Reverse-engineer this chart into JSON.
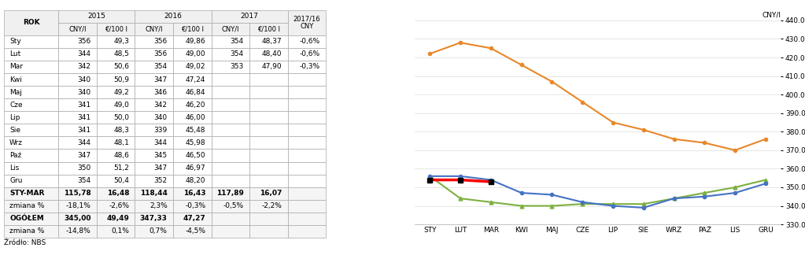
{
  "months": [
    "Sty",
    "Lut",
    "Mar",
    "Kwi",
    "Maj",
    "Cze",
    "Lip",
    "Sie",
    "Wrz",
    "Paź",
    "Lis",
    "Gru"
  ],
  "months_chart": [
    "STY",
    "LUT",
    "MAR",
    "KWI",
    "MAJ",
    "CZE",
    "LIP",
    "SIE",
    "WRZ",
    "PAŻ",
    "LIS",
    "GRU"
  ],
  "data_2015_cny": [
    356,
    344,
    342,
    340,
    340,
    341,
    341,
    341,
    344,
    347,
    350,
    354
  ],
  "data_2015_eur": [
    "49,3",
    "48,5",
    "50,6",
    "50,9",
    "49,2",
    "49,0",
    "50,0",
    "48,3",
    "48,1",
    "48,6",
    "51,2",
    "50,4"
  ],
  "data_2016_cny": [
    356,
    356,
    354,
    347,
    346,
    342,
    340,
    339,
    344,
    345,
    347,
    352
  ],
  "data_2016_eur": [
    "49,86",
    "49,00",
    "49,02",
    "47,24",
    "46,84",
    "46,20",
    "46,00",
    "45,48",
    "45,98",
    "46,50",
    "46,97",
    "48,20"
  ],
  "data_2017_cny": [
    354,
    354,
    353,
    "",
    "",
    "",
    "",
    "",
    "",
    "",
    "",
    ""
  ],
  "data_2017_eur": [
    "48,37",
    "48,40",
    "47,90",
    "",
    "",
    "",
    "",
    "",
    "",
    "",
    "",
    ""
  ],
  "data_change": [
    "-0,6%",
    "-0,6%",
    "-0,3%",
    "",
    "",
    "",
    "",
    "",
    "",
    "",
    "",
    ""
  ],
  "stymarch_row": [
    "STY-MAR",
    "115,78",
    "16,48",
    "118,44",
    "16,43",
    "117,89",
    "16,07",
    ""
  ],
  "zmiana1_row": [
    "zmiana %",
    "-18,1%",
    "-2,6%",
    "2,3%",
    "-0,3%",
    "-0,5%",
    "-2,2%",
    ""
  ],
  "ogol_row": [
    "OGÓŁEM",
    "345,00",
    "49,49",
    "347,33",
    "47,27",
    "",
    "",
    ""
  ],
  "zmiana2_row": [
    "zmiana %",
    "-14,8%",
    "0,1%",
    "0,7%",
    "-4,5%",
    "",
    "",
    ""
  ],
  "chart_2014": [
    422,
    428,
    425,
    416,
    407,
    396,
    385,
    381,
    376,
    374,
    370,
    376
  ],
  "chart_2015": [
    356,
    344,
    342,
    340,
    340,
    341,
    341,
    341,
    344,
    347,
    350,
    354
  ],
  "chart_2016": [
    356,
    356,
    354,
    347,
    346,
    342,
    340,
    339,
    344,
    345,
    347,
    352
  ],
  "chart_2017": [
    354,
    354,
    353
  ],
  "ylim": [
    330,
    440
  ],
  "yticks": [
    330.0,
    340.0,
    350.0,
    360.0,
    370.0,
    380.0,
    390.0,
    400.0,
    410.0,
    420.0,
    430.0,
    440.0
  ],
  "color_2014": "#E8872A",
  "color_2015": "#7DB040",
  "color_2016": "#4472C4",
  "color_2017": "#FF0000",
  "source": "Źródło: NBS",
  "ylabel": "CNY/l"
}
